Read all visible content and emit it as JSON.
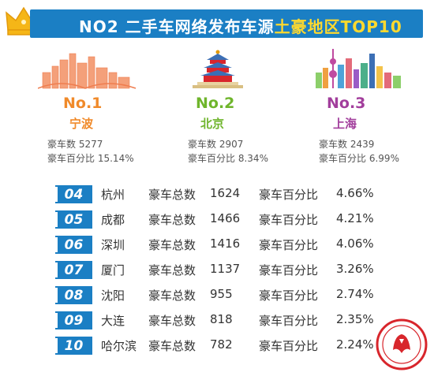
{
  "header": {
    "title_prefix": "NO2 二手车网络发布车源",
    "title_highlight": "土豪地区TOP10"
  },
  "colors": {
    "header_bg": "#1b7fc4",
    "highlight": "#ffd92e",
    "no1": "#f08a2a",
    "no2": "#6fb52c",
    "no3": "#a23e9c",
    "badge": "#1b7fc4",
    "seal": "#d8262c"
  },
  "top3": [
    {
      "rank": "No.1",
      "city": "宁波",
      "count_label": "豪车数",
      "count": "5277",
      "pct_label": "豪车百分比",
      "pct": "15.14%",
      "icon": "ningbo-skyline-icon"
    },
    {
      "rank": "No.2",
      "city": "北京",
      "count_label": "豪车数",
      "count": "2907",
      "pct_label": "豪车百分比",
      "pct": "8.34%",
      "icon": "temple-of-heaven-icon"
    },
    {
      "rank": "No.3",
      "city": "上海",
      "count_label": "豪车数",
      "count": "2439",
      "pct_label": "豪车百分比",
      "pct": "6.99%",
      "icon": "shanghai-skyline-icon"
    }
  ],
  "rows": [
    {
      "num": "04",
      "city": "杭州",
      "total_label": "豪车总数",
      "total": "1624",
      "pct_label": "豪车百分比",
      "pct": "4.66%"
    },
    {
      "num": "05",
      "city": "成都",
      "total_label": "豪车总数",
      "total": "1466",
      "pct_label": "豪车百分比",
      "pct": "4.21%"
    },
    {
      "num": "06",
      "city": "深圳",
      "total_label": "豪车总数",
      "total": "1416",
      "pct_label": "豪车百分比",
      "pct": "4.06%"
    },
    {
      "num": "07",
      "city": "厦门",
      "total_label": "豪车总数",
      "total": "1137",
      "pct_label": "豪车百分比",
      "pct": "3.26%"
    },
    {
      "num": "08",
      "city": "沈阳",
      "total_label": "豪车总数",
      "total": "955",
      "pct_label": "豪车百分比",
      "pct": "2.74%"
    },
    {
      "num": "09",
      "city": "大连",
      "total_label": "豪车总数",
      "total": "818",
      "pct_label": "豪车百分比",
      "pct": "2.35%"
    },
    {
      "num": "10",
      "city": "哈尔滨",
      "total_label": "豪车总数",
      "total": "782",
      "pct_label": "豪车百分比",
      "pct": "2.24%"
    }
  ]
}
